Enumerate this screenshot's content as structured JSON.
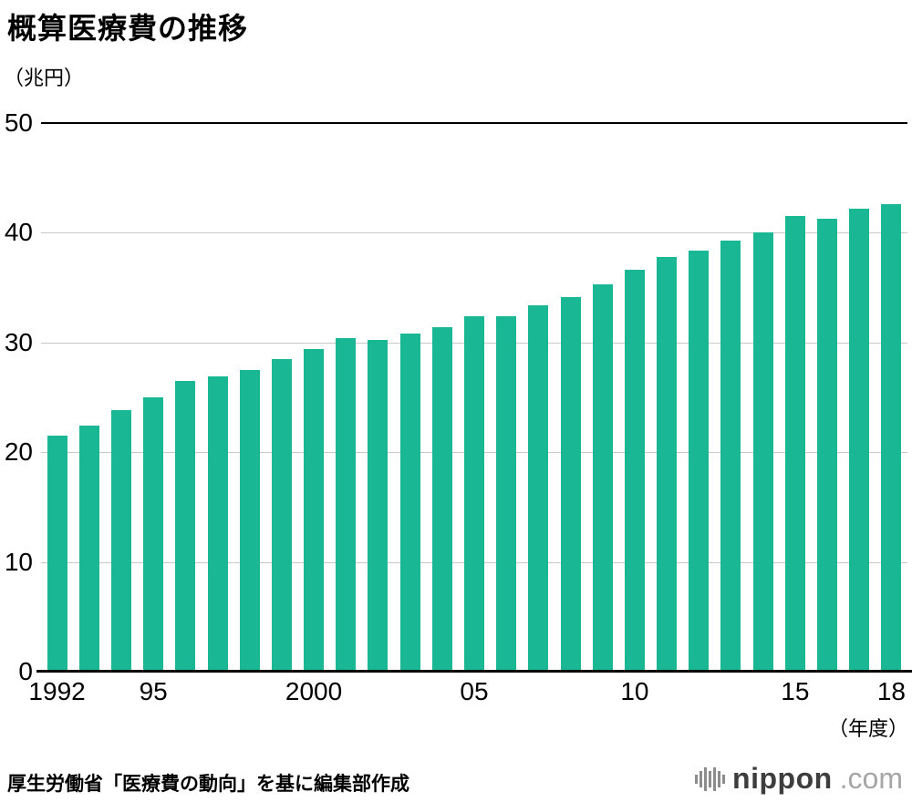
{
  "title": "概算医療費の推移",
  "y_unit_label": "（兆円）",
  "x_unit_label": "（年度）",
  "source": "厚生労働省「医療費の動向」を基に編集部作成",
  "logo": {
    "name": "nippon",
    "suffix": ".com"
  },
  "colors": {
    "bar": "#19b793",
    "grid": "#c9c9c9",
    "axis": "#000000",
    "logo_mark": "#8c8c8c",
    "logo_name": "#3d3d3d",
    "logo_suffix": "#a6a6a6"
  },
  "chart_data": {
    "type": "bar",
    "title": "概算医療費の推移",
    "ylabel": "兆円",
    "xlabel": "年度",
    "ylim": [
      0,
      50
    ],
    "yticks": [
      0,
      10,
      20,
      30,
      40,
      50
    ],
    "grid": true,
    "legend": "none",
    "categories": [
      1992,
      1993,
      1994,
      1995,
      1996,
      1997,
      1998,
      1999,
      2000,
      2001,
      2002,
      2003,
      2004,
      2005,
      2006,
      2007,
      2008,
      2009,
      2010,
      2011,
      2012,
      2013,
      2014,
      2015,
      2016,
      2017,
      2018
    ],
    "values": [
      21.5,
      22.4,
      23.8,
      25.0,
      26.5,
      26.9,
      27.5,
      28.5,
      29.4,
      30.4,
      30.2,
      30.8,
      31.4,
      32.4,
      32.4,
      33.4,
      34.1,
      35.3,
      36.6,
      37.8,
      38.4,
      39.3,
      40.0,
      41.5,
      41.3,
      42.2,
      42.6
    ],
    "x_tick_labels": [
      {
        "index": 0,
        "label": "1992"
      },
      {
        "index": 3,
        "label": "95"
      },
      {
        "index": 8,
        "label": "2000"
      },
      {
        "index": 13,
        "label": "05"
      },
      {
        "index": 18,
        "label": "10"
      },
      {
        "index": 23,
        "label": "15"
      },
      {
        "index": 26,
        "label": "18"
      }
    ]
  }
}
